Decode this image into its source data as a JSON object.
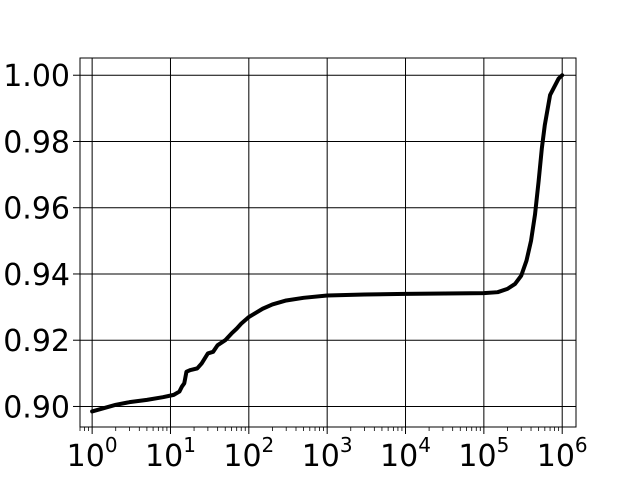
{
  "chart_data": {
    "type": "line",
    "title": "",
    "xlabel": "",
    "ylabel": "",
    "x_scale": "log",
    "xlim": [
      0.7,
      1500000
    ],
    "ylim": [
      0.8938,
      1.0052
    ],
    "grid": true,
    "x_ticks": [
      {
        "value": 1,
        "base": "10",
        "exp": "0"
      },
      {
        "value": 10,
        "base": "10",
        "exp": "1"
      },
      {
        "value": 100,
        "base": "10",
        "exp": "2"
      },
      {
        "value": 1000,
        "base": "10",
        "exp": "3"
      },
      {
        "value": 10000,
        "base": "10",
        "exp": "4"
      },
      {
        "value": 100000,
        "base": "10",
        "exp": "5"
      },
      {
        "value": 1000000,
        "base": "10",
        "exp": "6"
      }
    ],
    "y_ticks": [
      {
        "value": 0.9,
        "label": "0.90"
      },
      {
        "value": 0.92,
        "label": "0.92"
      },
      {
        "value": 0.94,
        "label": "0.94"
      },
      {
        "value": 0.96,
        "label": "0.96"
      },
      {
        "value": 0.98,
        "label": "0.98"
      },
      {
        "value": 1.0,
        "label": "1.00"
      }
    ],
    "series": [
      {
        "color": "#000000",
        "points": [
          [
            1,
            0.8985
          ],
          [
            2,
            0.9005
          ],
          [
            3,
            0.9013
          ],
          [
            5,
            0.902
          ],
          [
            8,
            0.9028
          ],
          [
            11,
            0.9035
          ],
          [
            13,
            0.9045
          ],
          [
            14,
            0.906
          ],
          [
            15,
            0.907
          ],
          [
            16,
            0.9105
          ],
          [
            18,
            0.911
          ],
          [
            22,
            0.9115
          ],
          [
            25,
            0.913
          ],
          [
            30,
            0.916
          ],
          [
            35,
            0.9165
          ],
          [
            40,
            0.9185
          ],
          [
            50,
            0.92
          ],
          [
            60,
            0.922
          ],
          [
            70,
            0.9235
          ],
          [
            80,
            0.925
          ],
          [
            100,
            0.927
          ],
          [
            150,
            0.9295
          ],
          [
            200,
            0.9308
          ],
          [
            300,
            0.932
          ],
          [
            500,
            0.9328
          ],
          [
            1000,
            0.9335
          ],
          [
            3000,
            0.9338
          ],
          [
            10000,
            0.934
          ],
          [
            100000,
            0.9342
          ],
          [
            150000,
            0.9345
          ],
          [
            200000,
            0.9355
          ],
          [
            250000,
            0.937
          ],
          [
            300000,
            0.9395
          ],
          [
            350000,
            0.944
          ],
          [
            400000,
            0.95
          ],
          [
            450000,
            0.958
          ],
          [
            500000,
            0.968
          ],
          [
            550000,
            0.978
          ],
          [
            600000,
            0.985
          ],
          [
            700000,
            0.994
          ],
          [
            900000,
            0.999
          ],
          [
            1000000,
            1.0
          ]
        ]
      }
    ]
  }
}
